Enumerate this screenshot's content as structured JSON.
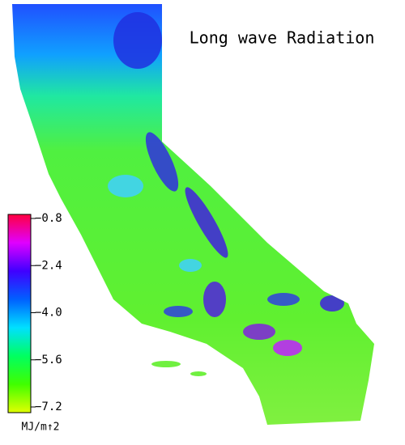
{
  "map": {
    "title": "Long wave Radiation",
    "colorbar": {
      "label": "MJ/m↑2",
      "lim": [
        -7.2,
        -0.8
      ],
      "ticks": [
        {
          "value": -0.8,
          "label": "−0.8"
        },
        {
          "value": -2.4,
          "label": "−2.4"
        },
        {
          "value": -4.0,
          "label": "−4.0"
        },
        {
          "value": -5.6,
          "label": "−5.6"
        },
        {
          "value": -7.2,
          "label": "−7.2"
        }
      ],
      "colors": [
        "#ff0040",
        "#e000ff",
        "#4000ff",
        "#0060ff",
        "#00e0ff",
        "#00ff60",
        "#40ff00",
        "#e0ff00"
      ]
    }
  }
}
